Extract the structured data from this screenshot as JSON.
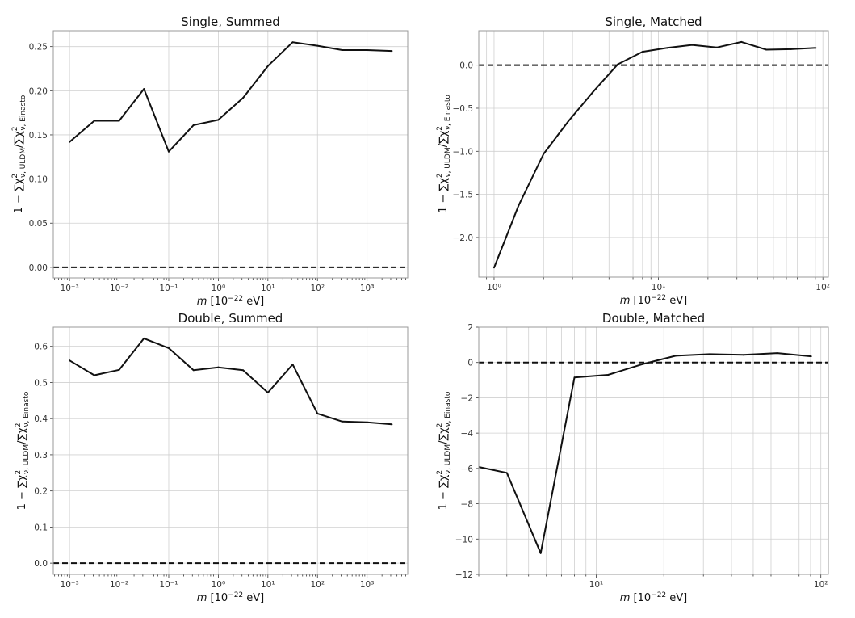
{
  "chart_data": [
    {
      "type": "line",
      "title": "Single, Summed",
      "xscale": "log",
      "xlim": [
        0.00047,
        6600
      ],
      "ylim": [
        -0.012,
        0.268
      ],
      "xticks": [
        0.001,
        0.01,
        0.1,
        1,
        10,
        100,
        1000
      ],
      "xtick_labels": [
        "10⁻³",
        "10⁻²",
        "10⁻¹",
        "10⁰",
        "10¹",
        "10²",
        "10³"
      ],
      "yticks": [
        0,
        0.05,
        0.1,
        0.15,
        0.2,
        0.25
      ],
      "ytick_labels": [
        "0.00",
        "0.05",
        "0.10",
        "0.15",
        "0.20",
        "0.25"
      ],
      "minor_grid": false,
      "grid": true,
      "reference_line": 0,
      "x": [
        0.001,
        0.00316,
        0.01,
        0.0316,
        0.1,
        0.316,
        1,
        3.16,
        10,
        31.6,
        100,
        316,
        1000,
        3162
      ],
      "y": [
        0.142,
        0.166,
        0.166,
        0.202,
        0.131,
        0.161,
        0.167,
        0.192,
        0.228,
        0.255,
        0.251,
        0.246,
        0.246,
        0.245
      ]
    },
    {
      "type": "line",
      "title": "Single, Matched",
      "xscale": "log",
      "xlim": [
        0.807,
        108
      ],
      "ylim": [
        -2.46,
        0.4
      ],
      "xticks": [
        1,
        10,
        100
      ],
      "xtick_labels": [
        "10⁰",
        "10¹",
        "10²"
      ],
      "yticks": [
        -2.0,
        -1.5,
        -1.0,
        -0.5,
        0.0
      ],
      "ytick_labels": [
        "−2.0",
        "−1.5",
        "−1.0",
        "−0.5",
        "0.0"
      ],
      "minor_grid": true,
      "grid": true,
      "reference_line": 0,
      "x": [
        1,
        1.41,
        2,
        2.83,
        4,
        5.66,
        8,
        11.3,
        16,
        22.6,
        32,
        45.3,
        64,
        90.5
      ],
      "y": [
        -2.35,
        -1.63,
        -1.03,
        -0.65,
        -0.31,
        0.01,
        0.155,
        0.2,
        0.235,
        0.205,
        0.27,
        0.18,
        0.185,
        0.2
      ]
    },
    {
      "type": "line",
      "title": "Double, Summed",
      "xscale": "log",
      "xlim": [
        0.00047,
        6600
      ],
      "ylim": [
        -0.031,
        0.653
      ],
      "xticks": [
        0.001,
        0.01,
        0.1,
        1,
        10,
        100,
        1000
      ],
      "xtick_labels": [
        "10⁻³",
        "10⁻²",
        "10⁻¹",
        "10⁰",
        "10¹",
        "10²",
        "10³"
      ],
      "yticks": [
        0,
        0.1,
        0.2,
        0.3,
        0.4,
        0.5,
        0.6
      ],
      "ytick_labels": [
        "0.0",
        "0.1",
        "0.2",
        "0.3",
        "0.4",
        "0.5",
        "0.6"
      ],
      "minor_grid": false,
      "grid": true,
      "reference_line": 0,
      "x": [
        0.001,
        0.00316,
        0.01,
        0.0316,
        0.1,
        0.316,
        1,
        3.16,
        10,
        31.6,
        100,
        316,
        1000,
        3162
      ],
      "y": [
        0.561,
        0.52,
        0.535,
        0.622,
        0.595,
        0.534,
        0.542,
        0.534,
        0.472,
        0.55,
        0.414,
        0.392,
        0.39,
        0.384
      ]
    },
    {
      "type": "line",
      "title": "Double, Matched",
      "xscale": "log",
      "xlim": [
        3.0,
        108
      ],
      "ylim": [
        -12,
        2
      ],
      "xticks": [
        10,
        100
      ],
      "xtick_labels": [
        "10¹",
        "10²"
      ],
      "yticks": [
        -12,
        -10,
        -8,
        -6,
        -4,
        -2,
        0,
        2
      ],
      "ytick_labels": [
        "−12",
        "−10",
        "−8",
        "−6",
        "−4",
        "−2",
        "0",
        "2"
      ],
      "minor_grid": true,
      "grid": true,
      "reference_line": 0,
      "x": [
        2.83,
        4,
        5.66,
        8,
        11.3,
        16,
        22.6,
        32,
        45.3,
        64,
        90.5
      ],
      "y": [
        -5.85,
        -6.25,
        -10.8,
        -0.85,
        -0.7,
        -0.1,
        0.38,
        0.47,
        0.43,
        0.53,
        0.35
      ]
    }
  ],
  "ylabel": {
    "prefix": "1 − ∑χ",
    "sup": "2",
    "sub1": "ν, ULDM",
    "mid": "/∑χ",
    "sub2": "ν, Einasto"
  },
  "xlabel": {
    "var": "m",
    "open": " [10",
    "exp": "−22",
    "unit": " eV]"
  },
  "colors": {
    "line": "#111111",
    "reference": "#111111",
    "grid": "#d0d0d0",
    "frame": "#999999"
  }
}
